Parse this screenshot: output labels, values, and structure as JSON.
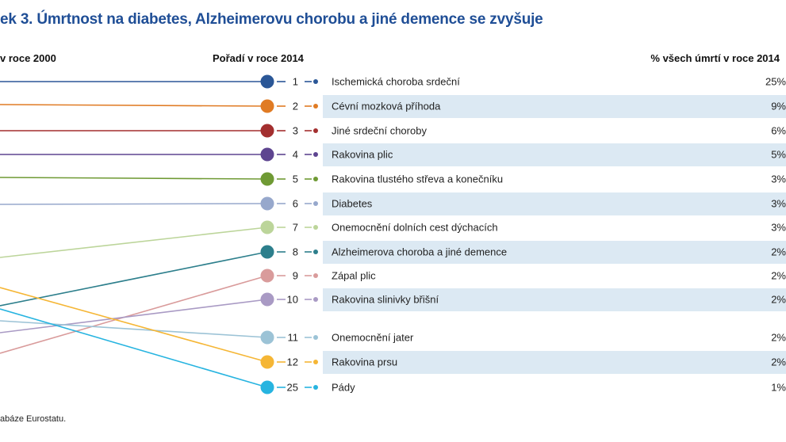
{
  "title": "ek 3. Úmrtnost na diabetes, Alzheimerovu chorobu a jiné demence se zvyšuje",
  "headers": {
    "left": "v roce 2000",
    "middle": "Pořadí v roce 2014",
    "right": "% všech úmrtí v roce 2014"
  },
  "source": "abáze Eurostatu.",
  "chart_data": {
    "type": "slope",
    "title": "ek 3. Úmrtnost na diabetes, Alzheimerovu chorobu a jiné demence se zvyšuje",
    "xlabel": "",
    "ylabel": "",
    "columns": [
      "v roce 2000",
      "Pořadí v roce 2014",
      "% všech úmrtí v roce 2014"
    ],
    "rows": [
      {
        "rank2014": "1",
        "cause": "Ischemická choroba srdeční",
        "pct": "25%",
        "color": "#2b5797"
      },
      {
        "rank2014": "2",
        "cause": "Cévní mozková příhoda",
        "pct": "9%",
        "color": "#e07b24"
      },
      {
        "rank2014": "3",
        "cause": "Jiné srdeční choroby",
        "pct": "6%",
        "color": "#a32f2f"
      },
      {
        "rank2014": "4",
        "cause": "Rakovina plic",
        "pct": "5%",
        "color": "#5e4590"
      },
      {
        "rank2014": "5",
        "cause": "Rakovina tlustého střeva a konečníku",
        "pct": "3%",
        "color": "#6f9a34"
      },
      {
        "rank2014": "6",
        "cause": "Diabetes",
        "pct": "3%",
        "color": "#97a8cc"
      },
      {
        "rank2014": "7",
        "cause": "Onemocnění dolních cest dýchacích",
        "pct": "3%",
        "color": "#bcd59a"
      },
      {
        "rank2014": "8",
        "cause": "Alzheimerova choroba a jiné demence",
        "pct": "2%",
        "color": "#2d7f8c"
      },
      {
        "rank2014": "9",
        "cause": "Zápal plic",
        "pct": "2%",
        "color": "#d99b9b"
      },
      {
        "rank2014": "10",
        "cause": "Rakovina slinivky břišní",
        "pct": "2%",
        "color": "#a99ac4"
      },
      {
        "rank2014": "11",
        "cause": "Onemocnění jater",
        "pct": "2%",
        "color": "#9cc3d6"
      },
      {
        "rank2014": "12",
        "cause": "Rakovina prsu",
        "pct": "2%",
        "color": "#f5b635"
      },
      {
        "rank2014": "25",
        "cause": "Pády",
        "pct": "1%",
        "color": "#27b4e0"
      }
    ],
    "stripe_color": "#dce9f3"
  }
}
